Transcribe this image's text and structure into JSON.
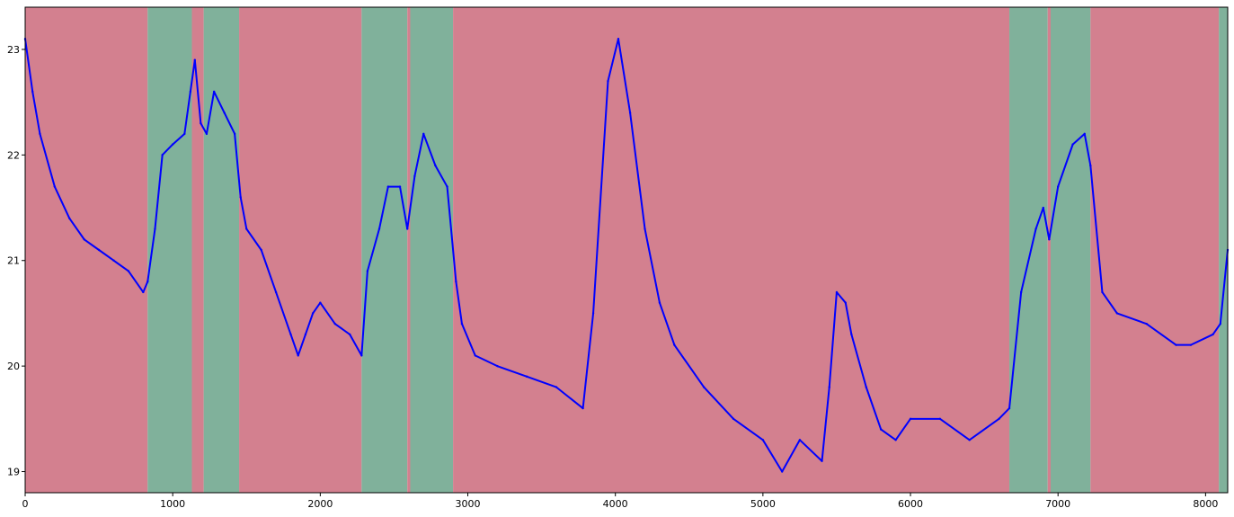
{
  "chart_data": {
    "type": "line",
    "title": "",
    "xlabel": "",
    "ylabel": "",
    "xlim": [
      0,
      8150
    ],
    "ylim": [
      18.8,
      23.4
    ],
    "x_ticks": [
      0,
      1000,
      2000,
      3000,
      4000,
      5000,
      6000,
      7000,
      8000
    ],
    "y_ticks": [
      19,
      20,
      21,
      22,
      23
    ],
    "grid": false,
    "legend": "none",
    "colors": {
      "line": "#0000ff",
      "band_red": "#d3808f",
      "band_green": "#80b19b",
      "axes": "#000000"
    },
    "background_bands": [
      {
        "start": 0,
        "end": 830,
        "state": "red"
      },
      {
        "start": 830,
        "end": 1130,
        "state": "green"
      },
      {
        "start": 1130,
        "end": 1210,
        "state": "red"
      },
      {
        "start": 1210,
        "end": 1450,
        "state": "green"
      },
      {
        "start": 1450,
        "end": 2280,
        "state": "red"
      },
      {
        "start": 2280,
        "end": 2590,
        "state": "green"
      },
      {
        "start": 2590,
        "end": 2610,
        "state": "red"
      },
      {
        "start": 2610,
        "end": 2900,
        "state": "green"
      },
      {
        "start": 2900,
        "end": 6670,
        "state": "red"
      },
      {
        "start": 6670,
        "end": 6930,
        "state": "green"
      },
      {
        "start": 6930,
        "end": 6950,
        "state": "red"
      },
      {
        "start": 6950,
        "end": 7220,
        "state": "green"
      },
      {
        "start": 7220,
        "end": 8090,
        "state": "red"
      },
      {
        "start": 8090,
        "end": 8150,
        "state": "green"
      }
    ],
    "series": [
      {
        "values": [
          [
            0,
            23.1
          ],
          [
            50,
            22.6
          ],
          [
            100,
            22.2
          ],
          [
            200,
            21.7
          ],
          [
            300,
            21.4
          ],
          [
            400,
            21.2
          ],
          [
            500,
            21.1
          ],
          [
            600,
            21.0
          ],
          [
            700,
            20.9
          ],
          [
            800,
            20.7
          ],
          [
            830,
            20.8
          ],
          [
            880,
            21.3
          ],
          [
            930,
            22.0
          ],
          [
            1000,
            22.1
          ],
          [
            1080,
            22.2
          ],
          [
            1120,
            22.6
          ],
          [
            1150,
            22.9
          ],
          [
            1190,
            22.3
          ],
          [
            1230,
            22.2
          ],
          [
            1280,
            22.6
          ],
          [
            1350,
            22.4
          ],
          [
            1420,
            22.2
          ],
          [
            1460,
            21.6
          ],
          [
            1500,
            21.3
          ],
          [
            1600,
            21.1
          ],
          [
            1700,
            20.7
          ],
          [
            1800,
            20.3
          ],
          [
            1850,
            20.1
          ],
          [
            1900,
            20.3
          ],
          [
            1950,
            20.5
          ],
          [
            2000,
            20.6
          ],
          [
            2100,
            20.4
          ],
          [
            2200,
            20.3
          ],
          [
            2280,
            20.1
          ],
          [
            2320,
            20.9
          ],
          [
            2400,
            21.3
          ],
          [
            2460,
            21.7
          ],
          [
            2540,
            21.7
          ],
          [
            2590,
            21.3
          ],
          [
            2640,
            21.8
          ],
          [
            2700,
            22.2
          ],
          [
            2780,
            21.9
          ],
          [
            2860,
            21.7
          ],
          [
            2920,
            20.8
          ],
          [
            2960,
            20.4
          ],
          [
            3050,
            20.1
          ],
          [
            3200,
            20.0
          ],
          [
            3400,
            19.9
          ],
          [
            3600,
            19.8
          ],
          [
            3780,
            19.6
          ],
          [
            3850,
            20.5
          ],
          [
            3950,
            22.7
          ],
          [
            4020,
            23.1
          ],
          [
            4100,
            22.4
          ],
          [
            4200,
            21.3
          ],
          [
            4300,
            20.6
          ],
          [
            4400,
            20.2
          ],
          [
            4600,
            19.8
          ],
          [
            4800,
            19.5
          ],
          [
            5000,
            19.3
          ],
          [
            5130,
            19.0
          ],
          [
            5250,
            19.3
          ],
          [
            5400,
            19.1
          ],
          [
            5450,
            19.8
          ],
          [
            5500,
            20.7
          ],
          [
            5560,
            20.6
          ],
          [
            5600,
            20.3
          ],
          [
            5700,
            19.8
          ],
          [
            5800,
            19.4
          ],
          [
            5900,
            19.3
          ],
          [
            6000,
            19.5
          ],
          [
            6200,
            19.5
          ],
          [
            6400,
            19.3
          ],
          [
            6600,
            19.5
          ],
          [
            6670,
            19.6
          ],
          [
            6750,
            20.7
          ],
          [
            6850,
            21.3
          ],
          [
            6900,
            21.5
          ],
          [
            6940,
            21.2
          ],
          [
            7000,
            21.7
          ],
          [
            7100,
            22.1
          ],
          [
            7180,
            22.2
          ],
          [
            7220,
            21.9
          ],
          [
            7300,
            20.7
          ],
          [
            7400,
            20.5
          ],
          [
            7600,
            20.4
          ],
          [
            7800,
            20.2
          ],
          [
            7900,
            20.2
          ],
          [
            8050,
            20.3
          ],
          [
            8100,
            20.4
          ],
          [
            8150,
            21.1
          ]
        ]
      }
    ]
  }
}
